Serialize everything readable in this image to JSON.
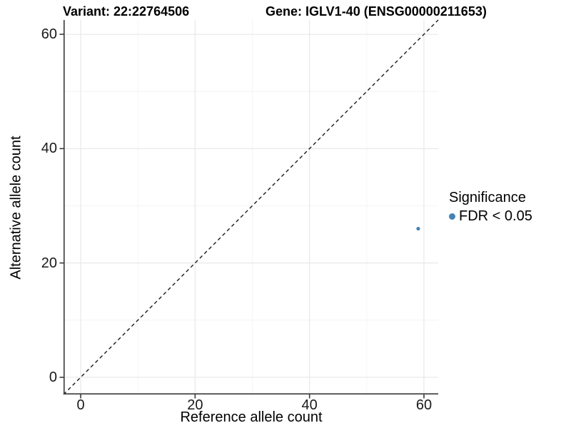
{
  "header": {
    "variant_title": "Variant: 22:22764506",
    "gene_title": "Gene: IGLV1-40 (ENSG00000211653)"
  },
  "legend": {
    "title": "Significance",
    "items": [
      {
        "label": "FDR < 0.05",
        "color": "#4682B4"
      }
    ]
  },
  "chart_data": {
    "type": "scatter",
    "title": "Variant: 22:22764506    Gene: IGLV1-40 (ENSG00000211653)",
    "xlabel": "Reference allele count",
    "ylabel": "Alternative allele count",
    "xlim": [
      -3,
      62.5
    ],
    "ylim": [
      -3,
      62.5
    ],
    "x_ticks": [
      0,
      20,
      40,
      60
    ],
    "y_ticks": [
      0,
      20,
      40,
      60
    ],
    "x_minor_ticks": [
      10,
      30,
      50
    ],
    "y_minor_ticks": [
      10,
      30,
      50
    ],
    "grid": "major and minor, light gray on white",
    "legend_position": "right, middle",
    "series": [
      {
        "name": "FDR < 0.05",
        "color": "#4682B4",
        "points": [
          {
            "x": 59,
            "y": 26
          }
        ]
      }
    ],
    "reference_line": {
      "type": "identity y=x",
      "style": "dashed",
      "color": "#1a1a1a"
    }
  },
  "colors": {
    "background": "#ffffff",
    "grid_major": "#e8e8e8",
    "grid_minor": "#f4f4f4",
    "axis_line": "#3a3a3a",
    "tick_text": "#1a1a1a",
    "point": "#4682B4"
  }
}
